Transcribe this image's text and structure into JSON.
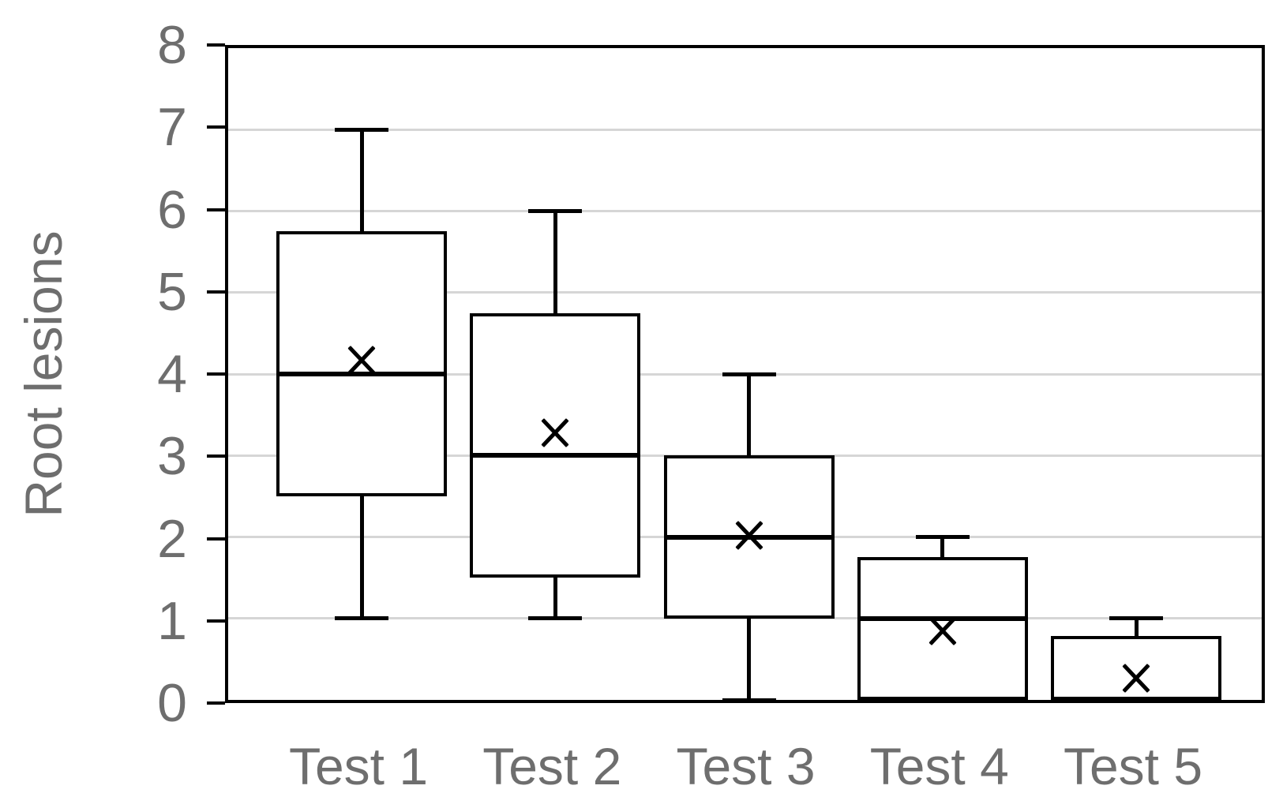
{
  "chart_data": {
    "type": "boxplot",
    "title": "",
    "xlabel": "",
    "ylabel": "Root lesions",
    "ylim": [
      0,
      8
    ],
    "yticks": [
      0,
      1,
      2,
      3,
      4,
      5,
      6,
      7,
      8
    ],
    "grid": "horizontal gridlines at 1-7, full black frame around plot area",
    "legend": "none",
    "mean_marker_shape": "x",
    "categories": [
      "Test 1",
      "Test 2",
      "Test 3",
      "Test 4",
      "Test 5"
    ],
    "series": [
      {
        "category": "Test 1",
        "min": 1,
        "q1": 2.5,
        "median": 4,
        "q3": 5.75,
        "max": 7,
        "mean": 4.17
      },
      {
        "category": "Test 2",
        "min": 1,
        "q1": 1.5,
        "median": 3,
        "q3": 4.75,
        "max": 6,
        "mean": 3.28
      },
      {
        "category": "Test 3",
        "min": 0,
        "q1": 1,
        "median": 2,
        "q3": 3,
        "max": 4,
        "mean": 2.02
      },
      {
        "category": "Test 4",
        "min": 0,
        "q1": 0,
        "median": 1,
        "q3": 1.75,
        "max": 2,
        "mean": 0.85
      },
      {
        "category": "Test 5",
        "min": 0,
        "q1": 0,
        "median": 0,
        "q3": 0.78,
        "max": 1,
        "mean": 0.27
      }
    ],
    "colors": {
      "box_stroke": "#000000",
      "box_fill": "#ffffff",
      "median": "#000000",
      "whisker": "#000000",
      "mean_marker": "#000000",
      "gridline": "#d6d6d6",
      "axis_frame": "#000000",
      "label_text": "#6e6e6e",
      "background": "#ffffff"
    }
  }
}
